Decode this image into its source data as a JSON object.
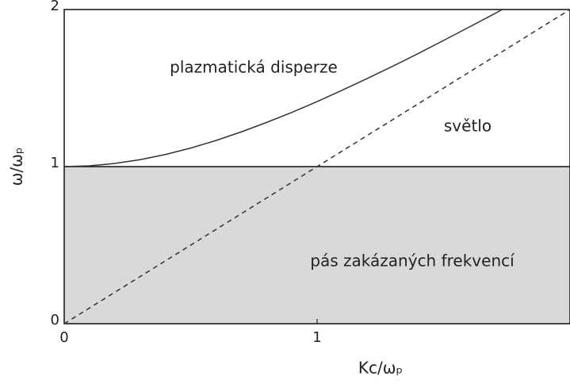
{
  "chart_data": {
    "type": "line",
    "xlabel": "Kc/ωₚ",
    "ylabel": "ω/ωₚ",
    "xlim": [
      0,
      2
    ],
    "ylim": [
      0,
      2
    ],
    "xticks": [
      0,
      1
    ],
    "yticks": [
      0,
      1,
      2
    ],
    "band": {
      "ylim": [
        0,
        1
      ],
      "color": "#d9d9d9",
      "label": "pás zakázaných frekvencí"
    },
    "series": [
      {
        "color": "#333333",
        "dash": false,
        "x": [
          0,
          0.1,
          0.2,
          0.3,
          0.4,
          0.5,
          0.6,
          0.7,
          0.8,
          0.9,
          1.0,
          1.1,
          1.2,
          1.3,
          1.4,
          1.5,
          1.6,
          1.7,
          1.732
        ],
        "values": [
          1,
          1.005,
          1.02,
          1.044,
          1.077,
          1.118,
          1.166,
          1.221,
          1.281,
          1.345,
          1.414,
          1.487,
          1.562,
          1.64,
          1.72,
          1.803,
          1.887,
          1.972,
          2
        ]
      },
      {
        "color": "#333333",
        "dash": true,
        "x": [
          0,
          2
        ],
        "values": [
          0,
          2
        ]
      }
    ],
    "annotations": [
      "plazmatická disperze",
      "světlo"
    ]
  }
}
